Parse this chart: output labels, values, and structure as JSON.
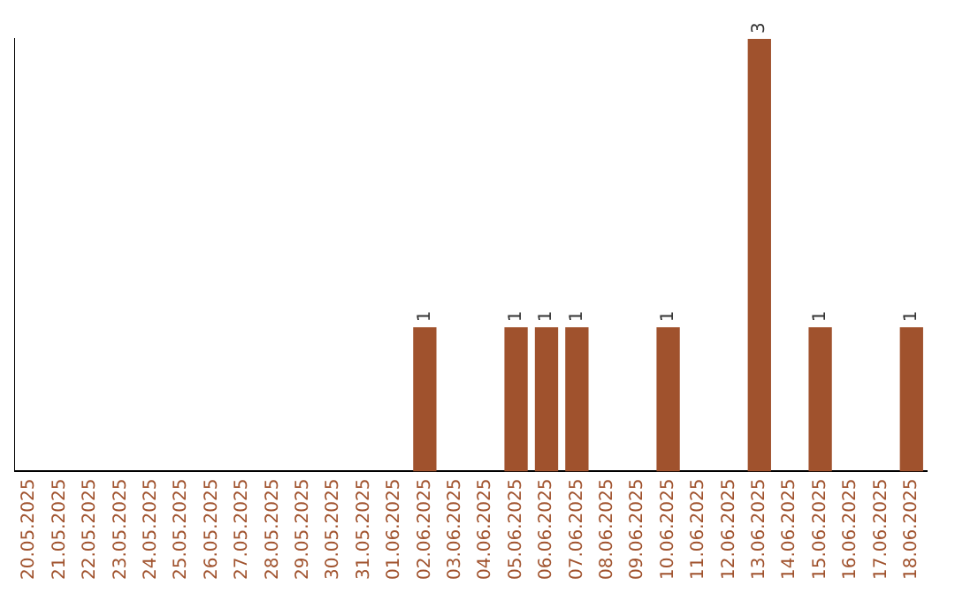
{
  "chart_data": {
    "type": "bar",
    "categories": [
      "20.05.2025",
      "21.05.2025",
      "22.05.2025",
      "23.05.2025",
      "24.05.2025",
      "25.05.2025",
      "26.05.2025",
      "27.05.2025",
      "28.05.2025",
      "29.05.2025",
      "30.05.2025",
      "31.05.2025",
      "01.06.2025",
      "02.06.2025",
      "03.06.2025",
      "04.06.2025",
      "05.06.2025",
      "06.06.2025",
      "07.06.2025",
      "08.06.2025",
      "09.06.2025",
      "10.06.2025",
      "11.06.2025",
      "12.06.2025",
      "13.06.2025",
      "14.06.2025",
      "15.06.2025",
      "16.06.2025",
      "17.06.2025",
      "18.06.2025"
    ],
    "values": [
      null,
      null,
      null,
      null,
      null,
      null,
      null,
      null,
      null,
      null,
      null,
      null,
      null,
      1,
      null,
      null,
      1,
      1,
      1,
      null,
      null,
      1,
      null,
      null,
      3,
      null,
      1,
      null,
      null,
      1
    ],
    "data_labels": true,
    "color": "#a0522d",
    "grid": false,
    "legend": false
  }
}
